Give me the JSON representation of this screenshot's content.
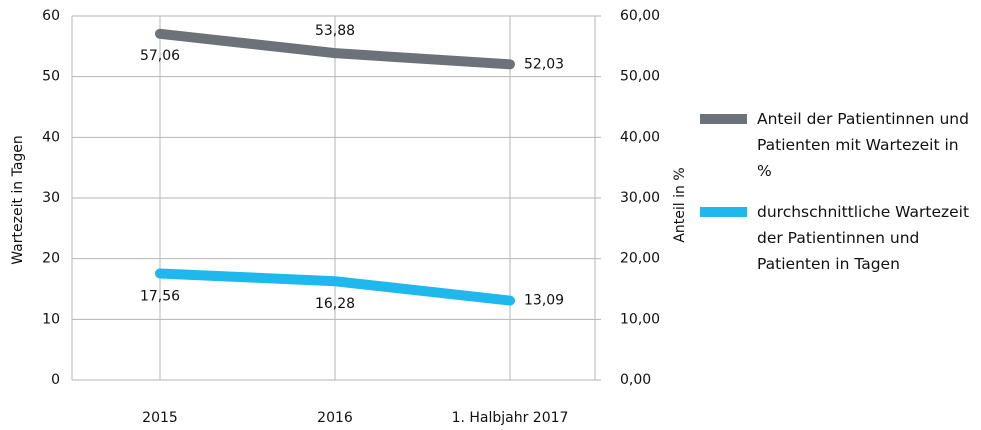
{
  "chart_data": {
    "type": "line",
    "categories": [
      "2015",
      "2016",
      "1. Halbjahr 2017"
    ],
    "ylabel": "Wartezeit in Tagen",
    "y2label": "Anteil in %",
    "ylim": [
      0,
      60
    ],
    "yticks": [
      0,
      10,
      20,
      30,
      40,
      50,
      60
    ],
    "y2lim": [
      0,
      60
    ],
    "y2ticks": [
      {
        "value": 0,
        "label": "0,00"
      },
      {
        "value": 10,
        "label": "10,00"
      },
      {
        "value": 20,
        "label": "20,00"
      },
      {
        "value": 30,
        "label": "30,00"
      },
      {
        "value": 40,
        "label": "40,00"
      },
      {
        "value": 50,
        "label": "50,00"
      },
      {
        "value": 60,
        "label": "60,00"
      }
    ],
    "grid": true,
    "legend": "right",
    "series": [
      {
        "name": "Anteil der Patientinnen und Patienten mit Wartezeit in %",
        "color": "#6d7278",
        "axis": "y2",
        "values": [
          57.06,
          53.88,
          52.03
        ],
        "value_labels": [
          "57,06",
          "53,88",
          "52,03"
        ]
      },
      {
        "name": "durchschnittliche Wartezeit der Patientinnen und Patienten in Tagen",
        "color": "#1fb8ec",
        "axis": "y",
        "values": [
          17.56,
          16.28,
          13.09
        ],
        "value_labels": [
          "17,56",
          "16,28",
          "13,09"
        ]
      }
    ]
  }
}
